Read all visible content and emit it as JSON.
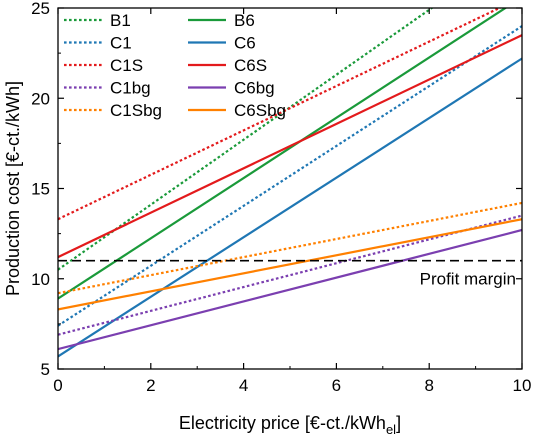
{
  "chart_data": {
    "type": "line",
    "title": "",
    "xlabel": "Electricity price [€-ct./kWh",
    "xlabel_sub": "el",
    "xlabel_end": "]",
    "ylabel": "Production cost [€-ct./kWh]",
    "xlim": [
      0,
      10
    ],
    "ylim": [
      5,
      25
    ],
    "xticks": [
      0,
      2,
      4,
      6,
      8,
      10
    ],
    "yticks": [
      5,
      10,
      15,
      20,
      25
    ],
    "grid": false,
    "legend_position": "top-left",
    "series": [
      {
        "name": "B1",
        "color": "#1a9a3a",
        "dash": "dotted",
        "x": [
          0,
          10
        ],
        "y": [
          10.5,
          28.5
        ]
      },
      {
        "name": "B6",
        "color": "#1a9a3a",
        "dash": "solid",
        "x": [
          0,
          10
        ],
        "y": [
          8.9,
          25.6
        ]
      },
      {
        "name": "C1",
        "color": "#1f77b4",
        "dash": "dotted",
        "x": [
          0,
          10
        ],
        "y": [
          7.4,
          24.0
        ]
      },
      {
        "name": "C6",
        "color": "#1f77b4",
        "dash": "solid",
        "x": [
          0,
          10
        ],
        "y": [
          5.7,
          22.2
        ]
      },
      {
        "name": "C1S",
        "color": "#e31a1c",
        "dash": "dotted",
        "x": [
          0,
          10
        ],
        "y": [
          13.3,
          25.6
        ]
      },
      {
        "name": "C6S",
        "color": "#e31a1c",
        "dash": "solid",
        "x": [
          0,
          10
        ],
        "y": [
          11.2,
          23.5
        ]
      },
      {
        "name": "C1bg",
        "color": "#7b3fb0",
        "dash": "dotted",
        "x": [
          0,
          10
        ],
        "y": [
          6.9,
          13.5
        ]
      },
      {
        "name": "C6bg",
        "color": "#7b3fb0",
        "dash": "solid",
        "x": [
          0,
          10
        ],
        "y": [
          6.1,
          12.7
        ]
      },
      {
        "name": "C1Sbg",
        "color": "#ff8000",
        "dash": "dotted",
        "x": [
          0,
          10
        ],
        "y": [
          9.2,
          14.2
        ]
      },
      {
        "name": "C6Sbg",
        "color": "#ff8000",
        "dash": "solid",
        "x": [
          0,
          10
        ],
        "y": [
          8.3,
          13.3
        ]
      }
    ],
    "legend_order": [
      "B1",
      "B6",
      "C1",
      "C6",
      "C1S",
      "C6S",
      "C1bg",
      "C6bg",
      "C1Sbg",
      "C6Sbg"
    ],
    "reference_line": {
      "label": "Profit margin",
      "y": 11,
      "color": "#000000",
      "dash": "dashed"
    }
  }
}
